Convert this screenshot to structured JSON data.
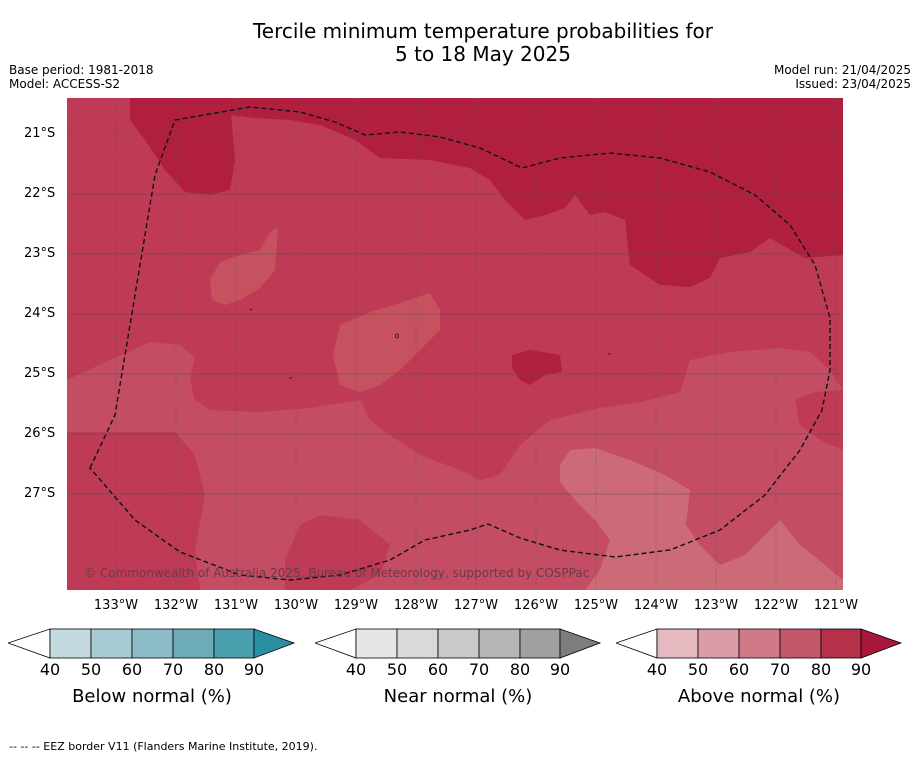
{
  "title_line1": "Tercile minimum temperature probabilities for",
  "title_line2": "5 to 18 May 2025",
  "meta_left": {
    "base_period": "Base period: 1981-2018",
    "model": "Model: ACCESS-S2"
  },
  "meta_right": {
    "model_run": "Model run: 21/04/2025",
    "issued": "Issued: 23/04/2025"
  },
  "copyright": "© Commonwealth of Australia 2025, Bureau of Meteorology, supported by COSPPac",
  "lat_labels": [
    "21°S",
    "22°S",
    "23°S",
    "24°S",
    "25°S",
    "26°S",
    "27°S"
  ],
  "lon_labels": [
    "133°W",
    "132°W",
    "131°W",
    "130°W",
    "129°W",
    "128°W",
    "127°W",
    "126°W",
    "125°W",
    "124°W",
    "123°W",
    "122°W",
    "121°W"
  ],
  "colorbars": [
    {
      "label": "Below normal (%)",
      "ticks": [
        "40",
        "50",
        "60",
        "70",
        "80",
        "90"
      ],
      "colors": [
        "#c3dae0",
        "#a8ccd4",
        "#8cbcc7",
        "#6eabb9",
        "#4a9fae"
      ],
      "extend_color": "#2b8fa3"
    },
    {
      "label": "Near normal (%)",
      "ticks": [
        "40",
        "50",
        "60",
        "70",
        "80",
        "90"
      ],
      "colors": [
        "#e6e6e6",
        "#d9d9d9",
        "#c9c9c9",
        "#b5b5b5",
        "#a0a0a0"
      ],
      "extend_color": "#7d7d7d"
    },
    {
      "label": "Above normal (%)",
      "ticks": [
        "40",
        "50",
        "60",
        "70",
        "80",
        "90"
      ],
      "colors": [
        "#e6b8c0",
        "#da9ca6",
        "#cf7a86",
        "#c4576a",
        "#b73049"
      ],
      "extend_color": "#a8163a"
    }
  ],
  "footer": "--  --  -- EEZ border V11 (Flanders Marine Institute, 2019)."
}
